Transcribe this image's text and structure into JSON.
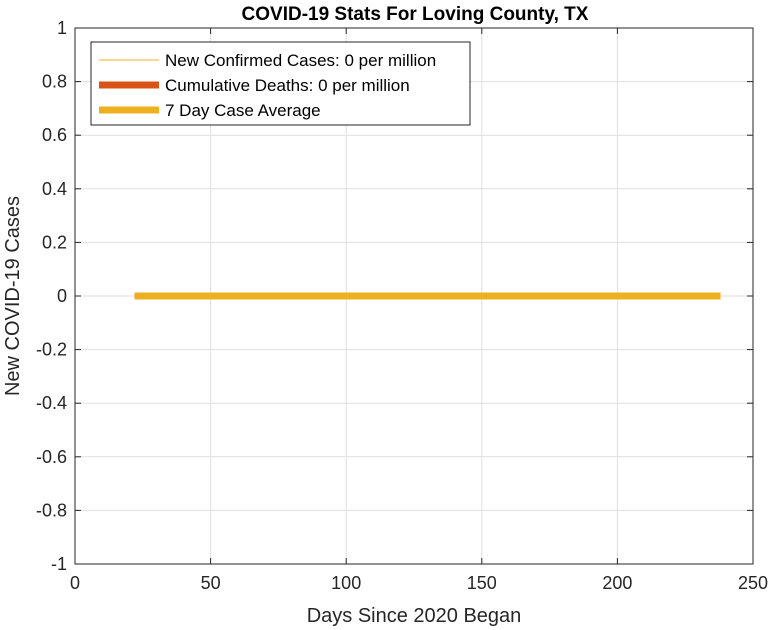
{
  "chart_data": {
    "type": "line",
    "title": "COVID-19 Stats For Loving County, TX",
    "xlabel": "Days Since 2020 Began",
    "ylabel": "New COVID-19 Cases",
    "xlim": [
      0,
      250
    ],
    "ylim": [
      -1,
      1
    ],
    "xticks": [
      0,
      50,
      100,
      150,
      200,
      250
    ],
    "yticks": [
      -1,
      -0.8,
      -0.6,
      -0.4,
      -0.2,
      0,
      0.2,
      0.4,
      0.6,
      0.8,
      1
    ],
    "grid": true,
    "legend_position": "top-left",
    "series": [
      {
        "name": "New Confirmed Cases: 0 per million",
        "color": "#EDB120",
        "style": "thin",
        "x": [
          22,
          238
        ],
        "y": [
          0,
          0
        ]
      },
      {
        "name": "Cumulative Deaths: 0 per million",
        "color": "#D95319",
        "style": "thick",
        "x": [
          22,
          238
        ],
        "y": [
          0,
          0
        ]
      },
      {
        "name": "7 Day Case Average",
        "color": "#EDB120",
        "style": "thick",
        "x": [
          22,
          238
        ],
        "y": [
          0,
          0
        ]
      }
    ]
  }
}
